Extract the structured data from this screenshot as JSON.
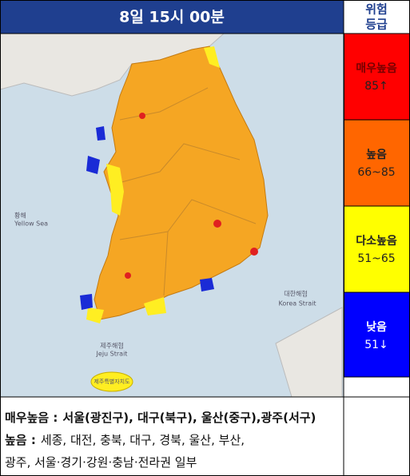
{
  "header": {
    "title": "8일 15시 00분"
  },
  "legend": {
    "title_lines": [
      "위험",
      "등급"
    ],
    "levels": [
      {
        "name": "매우높음",
        "range": "85↑",
        "color": "#ff0000"
      },
      {
        "name": "높음",
        "range": "66~85",
        "color": "#ff6600"
      },
      {
        "name": "다소높음",
        "range": "51~65",
        "color": "#ffff00"
      },
      {
        "name": "낮음",
        "range": "51↓",
        "color": "#0000ff"
      }
    ]
  },
  "map": {
    "labels": [
      "황해",
      "Yellow Sea",
      "대한해협",
      "Korea Strait",
      "제주해협",
      "Jeju Strait",
      "제주특별자치도"
    ]
  },
  "footer": {
    "lines": [
      {
        "label": "매우높음 :",
        "text": "서울(광진구), 대구(북구), 울산(중구),광주(서구)"
      },
      {
        "label": "높음 :",
        "text": "세종, 대전, 충북, 대구, 경북, 울산, 부산,"
      },
      {
        "text": "광주, 서울·경기·강원·충남·전라권 일부"
      }
    ]
  }
}
